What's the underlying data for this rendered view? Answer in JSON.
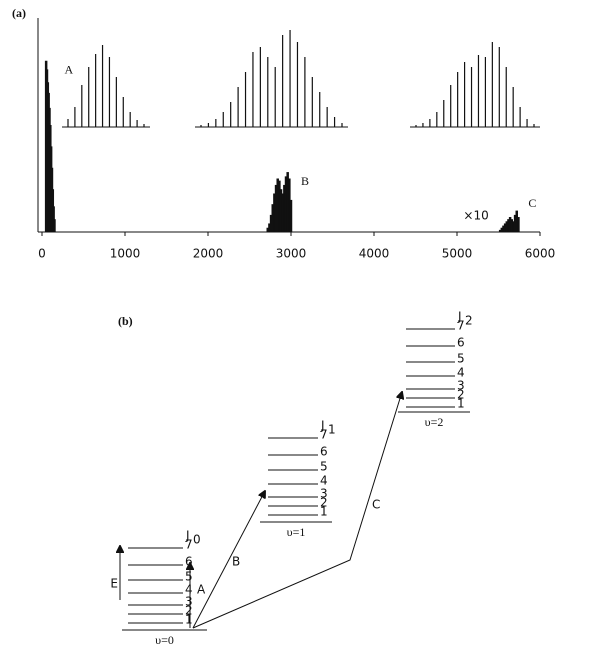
{
  "chart_data": {
    "type": "stick",
    "panel_label": "(a)",
    "xlim": [
      0,
      6000
    ],
    "xticks": [
      0,
      1000,
      2000,
      3000,
      4000,
      5000,
      6000
    ],
    "ylim": [
      0,
      1
    ],
    "color": "#111111",
    "bands": [
      {
        "label": "A",
        "x": [
          50,
          60,
          70,
          80,
          90,
          100,
          110,
          120,
          130,
          140,
          150
        ],
        "values": [
          0.8,
          0.76,
          0.7,
          0.65,
          0.58,
          0.5,
          0.4,
          0.3,
          0.2,
          0.12,
          0.06
        ]
      },
      {
        "label": "B",
        "x": [
          2720,
          2740,
          2760,
          2780,
          2800,
          2820,
          2840,
          2860,
          2880,
          2900,
          2920,
          2940,
          2960,
          2980,
          3000
        ],
        "values": [
          0.02,
          0.04,
          0.08,
          0.13,
          0.18,
          0.22,
          0.25,
          0.24,
          0.2,
          0.18,
          0.22,
          0.26,
          0.28,
          0.25,
          0.15
        ]
      },
      {
        "label": "C",
        "scale_note": "×10",
        "x": [
          5520,
          5540,
          5560,
          5580,
          5600,
          5620,
          5640,
          5660,
          5680,
          5700,
          5720,
          5740
        ],
        "values": [
          0.01,
          0.02,
          0.03,
          0.04,
          0.05,
          0.06,
          0.07,
          0.06,
          0.05,
          0.08,
          0.1,
          0.07
        ]
      }
    ],
    "insets": [
      {
        "values": [
          0.08,
          0.2,
          0.42,
          0.6,
          0.73,
          0.82,
          0.7,
          0.5,
          0.3,
          0.15,
          0.07,
          0.03
        ]
      },
      {
        "values": [
          0.02,
          0.04,
          0.08,
          0.15,
          0.25,
          0.4,
          0.55,
          0.75,
          0.8,
          0.7,
          0.6,
          0.92,
          0.97,
          0.85,
          0.7,
          0.5,
          0.35,
          0.2,
          0.1,
          0.04
        ]
      },
      {
        "values": [
          0.02,
          0.04,
          0.08,
          0.15,
          0.27,
          0.42,
          0.55,
          0.65,
          0.6,
          0.72,
          0.7,
          0.85,
          0.8,
          0.6,
          0.4,
          0.2,
          0.08,
          0.03
        ]
      }
    ]
  },
  "diagram": {
    "panel_label": "(b)",
    "stacks": [
      {
        "name": "υ=0",
        "j": "J",
        "j_sub": "0",
        "levels": [
          1,
          2,
          3,
          4,
          5,
          6,
          7
        ]
      },
      {
        "name": "υ=1",
        "j": "J",
        "j_sub": "1",
        "levels": [
          1,
          2,
          3,
          4,
          5,
          6,
          7
        ]
      },
      {
        "name": "υ=2",
        "j": "J",
        "j_sub": "2",
        "levels": [
          1,
          2,
          3,
          4,
          5,
          6,
          7
        ]
      }
    ],
    "transitions": [
      "A",
      "B",
      "C"
    ],
    "energy_label": "E"
  }
}
